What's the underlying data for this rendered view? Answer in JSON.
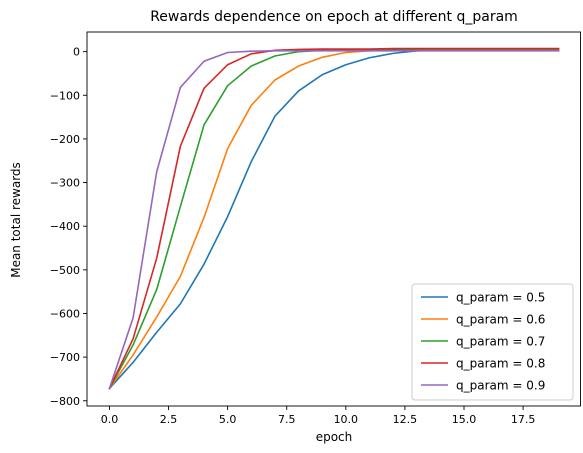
{
  "chart_data": {
    "type": "line",
    "title": "Rewards dependence on epoch at different q_param",
    "xlabel": "epoch",
    "ylabel": "Mean total rewards",
    "xlim": [
      -0.95,
      19.95
    ],
    "ylim": [
      -812,
      45
    ],
    "x_ticks": [
      0,
      2.5,
      5,
      7.5,
      10,
      12.5,
      15,
      17.5
    ],
    "x_tick_labels": [
      "0.0",
      "2.5",
      "5.0",
      "7.5",
      "10.0",
      "12.5",
      "15.0",
      "17.5"
    ],
    "y_ticks": [
      -800,
      -700,
      -600,
      -500,
      -400,
      -300,
      -200,
      -100,
      0
    ],
    "y_tick_labels": [
      "−800",
      "−700",
      "−600",
      "−500",
      "−400",
      "−300",
      "−200",
      "−100",
      "0"
    ],
    "grid": false,
    "legend_position": "lower-right",
    "x": [
      0,
      1,
      2,
      3,
      4,
      5,
      6,
      7,
      8,
      9,
      10,
      11,
      12,
      13,
      14,
      15,
      16,
      17,
      18,
      19
    ],
    "series": [
      {
        "name": "q_param = 0.5",
        "color": "#1f77b4",
        "values": [
          -772,
          -712,
          -643,
          -578,
          -487,
          -378,
          -252,
          -148,
          -90,
          -53,
          -30,
          -14,
          -4,
          2,
          3,
          3,
          3,
          3,
          3,
          3
        ]
      },
      {
        "name": "q_param = 0.6",
        "color": "#ff7f0e",
        "values": [
          -772,
          -695,
          -608,
          -515,
          -380,
          -222,
          -123,
          -65,
          -33,
          -13,
          -2,
          2,
          4,
          5,
          5,
          5,
          5,
          5,
          5,
          5
        ]
      },
      {
        "name": "q_param = 0.7",
        "color": "#2ca02c",
        "values": [
          -772,
          -672,
          -545,
          -355,
          -168,
          -78,
          -33,
          -10,
          0,
          3,
          4,
          5,
          5,
          6,
          6,
          6,
          6,
          6,
          6,
          6
        ]
      },
      {
        "name": "q_param = 0.8",
        "color": "#d62728",
        "values": [
          -772,
          -658,
          -473,
          -217,
          -84,
          -30,
          -5,
          3,
          5,
          6,
          6,
          6,
          7,
          7,
          7,
          7,
          7,
          7,
          7,
          7
        ]
      },
      {
        "name": "q_param = 0.9",
        "color": "#9467bd",
        "values": [
          -772,
          -610,
          -275,
          -82,
          -22,
          -2,
          1,
          2,
          2,
          2,
          2,
          2,
          2,
          2,
          2,
          2,
          2,
          2,
          2,
          2
        ]
      }
    ]
  }
}
